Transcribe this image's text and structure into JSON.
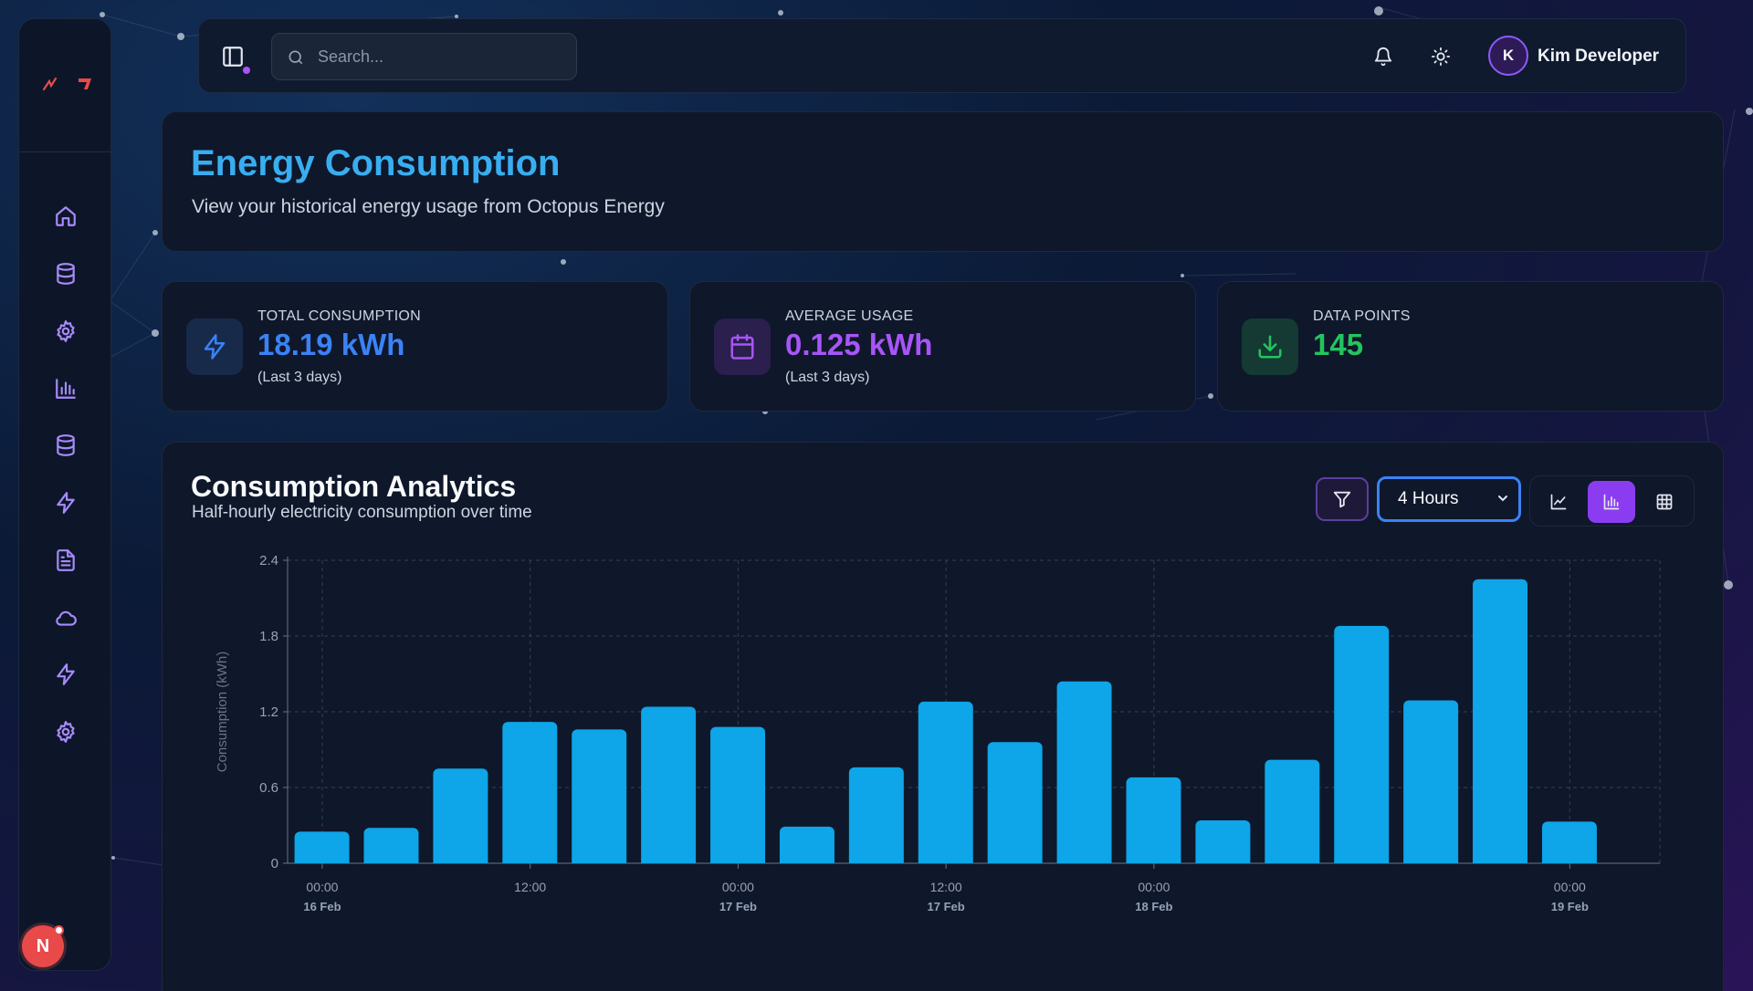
{
  "sidebar": {
    "logo_icon": "brand-logo",
    "items": [
      {
        "icon": "home-icon"
      },
      {
        "icon": "database-icon"
      },
      {
        "icon": "settings-icon"
      },
      {
        "icon": "bar-chart-icon"
      },
      {
        "icon": "database-icon"
      },
      {
        "icon": "lightning-icon"
      },
      {
        "icon": "document-icon"
      },
      {
        "icon": "cloud-icon"
      },
      {
        "icon": "lightning-icon"
      },
      {
        "icon": "settings-icon"
      }
    ],
    "badge_label": "N"
  },
  "topbar": {
    "search_placeholder": "Search...",
    "user_initial": "K",
    "user_name": "Kim Developer"
  },
  "header": {
    "title": "Energy Consumption",
    "subtitle": "View your historical energy usage from Octopus Energy"
  },
  "stats": [
    {
      "label": "TOTAL CONSUMPTION",
      "value": "18.19 kWh",
      "note": "(Last 3 days)",
      "color": "#3b82f6",
      "icon": "lightning-icon"
    },
    {
      "label": "AVERAGE USAGE",
      "value": "0.125 kWh",
      "note": "(Last 3 days)",
      "color": "#a855f7",
      "icon": "calendar-icon"
    },
    {
      "label": "DATA POINTS",
      "value": "145",
      "note": "",
      "color": "#22c55e",
      "icon": "download-icon"
    }
  ],
  "analytics": {
    "title": "Consumption Analytics",
    "subtitle": "Half-hourly electricity consumption over time",
    "range_selected": "4 Hours",
    "views": [
      "line-view",
      "bar-view",
      "table-view"
    ],
    "active_view": "bar-view"
  },
  "chart_data": {
    "type": "bar",
    "ylabel": "Consumption (kWh)",
    "ylim": [
      0,
      2.4
    ],
    "yticks": [
      "0",
      "0.6",
      "1.2",
      "1.8",
      "2.4"
    ],
    "grid": true,
    "bar_color": "#0ea5e9",
    "xticks": [
      {
        "time": "00:00",
        "date": "16 Feb"
      },
      {
        "time": "12:00",
        "date": ""
      },
      {
        "time": "00:00",
        "date": "17 Feb"
      },
      {
        "time": "12:00",
        "date": "17 Feb"
      },
      {
        "time": "00:00",
        "date": "18 Feb"
      },
      {
        "time": "00:00",
        "date": "19 Feb"
      }
    ],
    "values": [
      0.25,
      0.28,
      0.75,
      1.12,
      1.06,
      1.24,
      1.08,
      0.29,
      0.76,
      1.28,
      0.96,
      1.44,
      0.68,
      0.34,
      0.82,
      1.88,
      1.29,
      2.25,
      0.33
    ]
  }
}
